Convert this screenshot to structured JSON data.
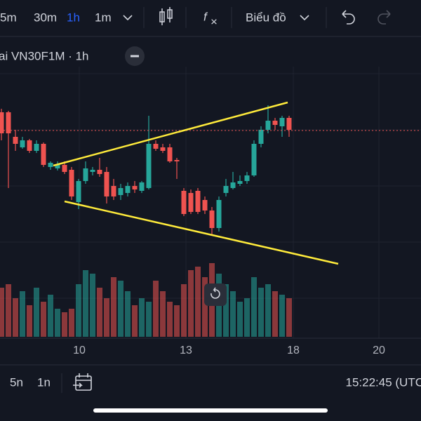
{
  "toolbar": {
    "intervals": [
      "5m",
      "30m",
      "1h",
      "1m"
    ],
    "active_interval": "1h",
    "chart_type_menu": "Biểu đồ"
  },
  "legend": {
    "symbol": "ai VN30F1M · 1h"
  },
  "chart_data": {
    "type": "candlestick",
    "up_color": "#26a69a",
    "down_color": "#ef5350",
    "ylim": [
      0,
      300
    ],
    "vlim": [
      0,
      110
    ],
    "xticks": [
      "10",
      "13",
      "18",
      "20"
    ],
    "candles": [
      [
        240,
        245,
        200,
        210,
        70
      ],
      [
        240,
        242,
        132,
        210,
        75
      ],
      [
        205,
        215,
        185,
        195,
        55
      ],
      [
        190,
        205,
        188,
        200,
        65
      ],
      [
        200,
        202,
        182,
        185,
        45
      ],
      [
        185,
        200,
        182,
        195,
        70
      ],
      [
        195,
        197,
        162,
        165,
        50
      ],
      [
        162,
        170,
        158,
        168,
        60
      ],
      [
        160,
        170,
        157,
        165,
        40
      ],
      [
        165,
        170,
        152,
        155,
        35
      ],
      [
        158,
        162,
        115,
        120,
        40
      ],
      [
        112,
        145,
        102,
        142,
        75
      ],
      [
        142,
        170,
        138,
        160,
        95
      ],
      [
        155,
        162,
        150,
        158,
        90
      ],
      [
        158,
        175,
        148,
        152,
        70
      ],
      [
        155,
        162,
        110,
        120,
        55
      ],
      [
        135,
        145,
        115,
        120,
        85
      ],
      [
        122,
        138,
        115,
        132,
        80
      ],
      [
        125,
        140,
        120,
        135,
        65
      ],
      [
        135,
        142,
        125,
        130,
        45
      ],
      [
        128,
        142,
        125,
        140,
        55
      ],
      [
        132,
        235,
        130,
        195,
        50
      ],
      [
        195,
        200,
        185,
        188,
        80
      ],
      [
        190,
        195,
        182,
        185,
        65
      ],
      [
        190,
        195,
        168,
        170,
        50
      ],
      [
        172,
        175,
        145,
        170,
        45
      ],
      [
        128,
        132,
        92,
        95,
        75
      ],
      [
        125,
        130,
        95,
        98,
        95
      ],
      [
        128,
        132,
        95,
        98,
        100
      ],
      [
        115,
        120,
        95,
        100,
        85
      ],
      [
        100,
        105,
        65,
        75,
        105
      ],
      [
        75,
        120,
        70,
        115,
        90
      ],
      [
        125,
        145,
        120,
        135,
        75
      ],
      [
        132,
        155,
        130,
        140,
        65
      ],
      [
        138,
        150,
        135,
        142,
        50
      ],
      [
        142,
        155,
        138,
        150,
        55
      ],
      [
        150,
        200,
        148,
        195,
        85
      ],
      [
        195,
        220,
        190,
        215,
        70
      ],
      [
        215,
        250,
        210,
        228,
        75
      ],
      [
        228,
        232,
        215,
        222,
        65
      ],
      [
        220,
        235,
        205,
        232,
        60
      ],
      [
        232,
        235,
        205,
        215,
        55
      ]
    ]
  },
  "bottom_bar": {
    "ranges": [
      "5n",
      "1n"
    ],
    "clock": "15:22:45 (UTC"
  }
}
